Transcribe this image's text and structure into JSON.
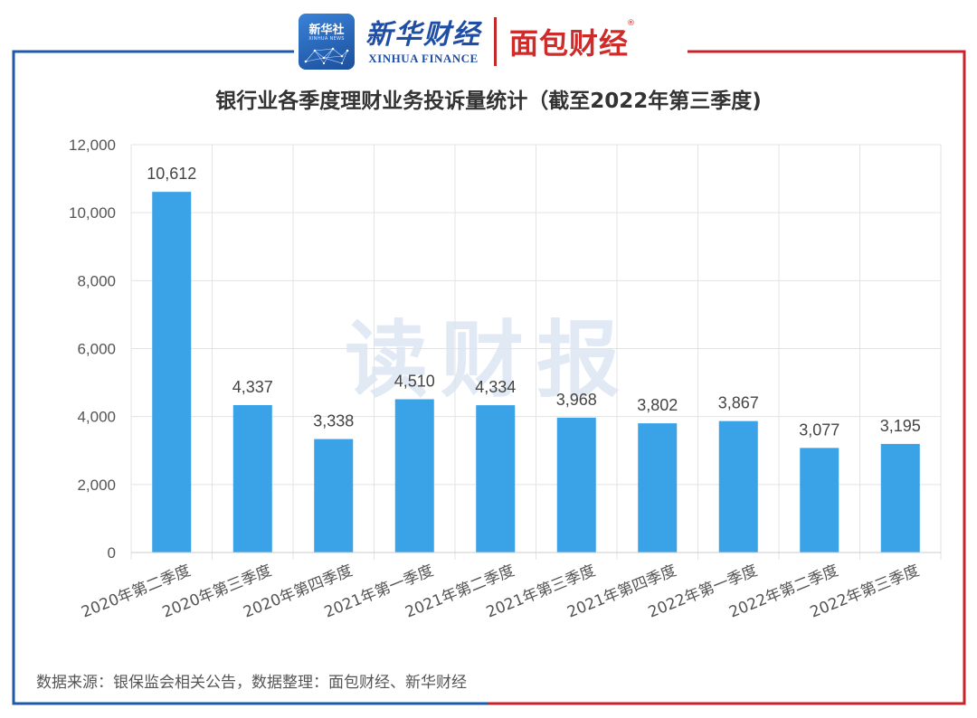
{
  "header": {
    "xinhua_badge": "新华社",
    "xinhua_badge_sub": "XINHUA NEWS",
    "xinhua_finance_cn": "新华财经",
    "xinhua_finance_en": "XINHUA FINANCE",
    "mianbao_logo": "面包财经"
  },
  "watermark": "读财报",
  "source_note": "数据来源：银保监会相关公告，数据整理：面包财经、新华财经",
  "colors": {
    "bar": "#3aa2e6",
    "frame_left": "#1e5aa8",
    "frame_right": "#c8232c",
    "grid": "#e3e3e3",
    "watermark": "#c9d8ee"
  },
  "chart_data": {
    "type": "bar",
    "title": "银行业各季度理财业务投诉量统计（截至2022年第三季度)",
    "categories": [
      "2020年第二季度",
      "2020年第三季度",
      "2020年第四季度",
      "2021年第一季度",
      "2021年第二季度",
      "2021年第三季度",
      "2021年第四季度",
      "2022年第一季度",
      "2022年第二季度",
      "2022年第三季度"
    ],
    "values": [
      10612,
      4337,
      3338,
      4510,
      4334,
      3968,
      3802,
      3867,
      3077,
      3195
    ],
    "value_labels": [
      "10,612",
      "4,337",
      "3,338",
      "4,510",
      "4,334",
      "3,968",
      "3,802",
      "3,867",
      "3,077",
      "3,195"
    ],
    "y_ticks": [
      0,
      2000,
      4000,
      6000,
      8000,
      10000,
      12000
    ],
    "y_tick_labels": [
      "0",
      "2,000",
      "4,000",
      "6,000",
      "8,000",
      "10,000",
      "12,000"
    ],
    "ylim": [
      0,
      12000
    ],
    "xlabel": "",
    "ylabel": "",
    "grid": true,
    "legend": "none"
  }
}
